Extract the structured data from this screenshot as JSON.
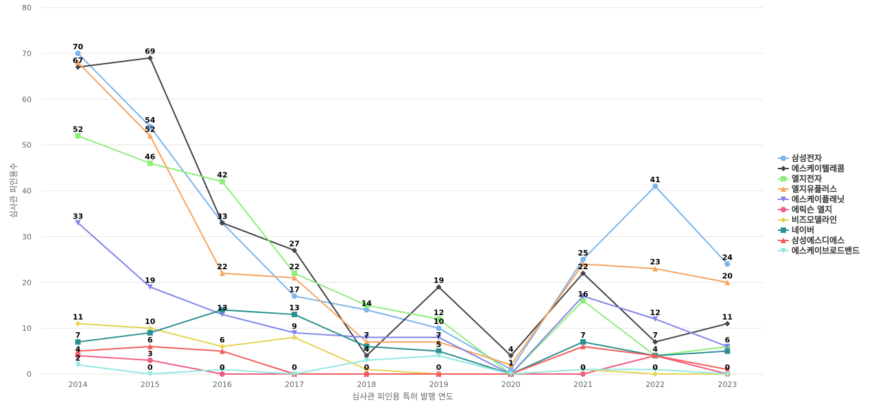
{
  "chart_data": {
    "type": "line",
    "title": "",
    "xlabel": "심사관 피인용 특허 발행 연도",
    "ylabel": "심사관 피인용수",
    "ylim": [
      0,
      80
    ],
    "yticks": [
      0,
      10,
      20,
      30,
      40,
      50,
      60,
      70,
      80
    ],
    "grid": true,
    "legend_position": "right",
    "x": [
      "2014",
      "2015",
      "2016",
      "2017",
      "2018",
      "2019",
      "2020",
      "2021",
      "2022",
      "2023"
    ],
    "series": [
      {
        "name": "삼성전자",
        "color": "#7cb5ec",
        "marker": "circle",
        "values": [
          70,
          54,
          33,
          17,
          14,
          10,
          1,
          25,
          41,
          24
        ],
        "labels": [
          true,
          true,
          false,
          true,
          true,
          true,
          false,
          true,
          true,
          true
        ]
      },
      {
        "name": "에스케이텔레콤",
        "color": "#434348",
        "marker": "diamond",
        "values": [
          67,
          69,
          33,
          27,
          4,
          19,
          4,
          22,
          7,
          11
        ],
        "labels": [
          true,
          true,
          true,
          true,
          true,
          true,
          true,
          true,
          true,
          true
        ]
      },
      {
        "name": "엘지전자",
        "color": "#90ed7d",
        "marker": "square",
        "values": [
          52,
          46,
          42,
          22,
          15,
          12,
          0,
          16,
          4,
          6
        ],
        "labels": [
          true,
          true,
          true,
          true,
          false,
          false,
          false,
          false,
          false,
          false
        ]
      },
      {
        "name": "엘지유플러스",
        "color": "#f7a35c",
        "marker": "triangle",
        "values": [
          68,
          52,
          22,
          21,
          7,
          7,
          2,
          24,
          23,
          20
        ],
        "labels": [
          false,
          true,
          true,
          false,
          false,
          false,
          false,
          false,
          true,
          true
        ]
      },
      {
        "name": "에스케이플래닛",
        "color": "#8085e9",
        "marker": "triangle-down",
        "values": [
          33,
          19,
          13,
          9,
          8,
          8,
          0,
          17,
          12,
          6
        ],
        "labels": [
          true,
          true,
          false,
          false,
          false,
          false,
          false,
          false,
          true,
          true
        ]
      },
      {
        "name": "에릭슨 엘지",
        "color": "#f15c80",
        "marker": "circle",
        "values": [
          4,
          3,
          0,
          0,
          0,
          0,
          0,
          0,
          4,
          0
        ],
        "labels": [
          true,
          true,
          true,
          true,
          true,
          true,
          false,
          true,
          true,
          true
        ]
      },
      {
        "name": "비즈모델라인",
        "color": "#e4d354",
        "marker": "diamond",
        "values": [
          11,
          10,
          6,
          8,
          1,
          0,
          0,
          1,
          0,
          0
        ],
        "labels": [
          true,
          true,
          true,
          true,
          false,
          false,
          false,
          false,
          false,
          false
        ]
      },
      {
        "name": "네이버",
        "color": "#2b908f",
        "marker": "square",
        "values": [
          7,
          9,
          14,
          13,
          6,
          5,
          0,
          7,
          4,
          5
        ],
        "labels": [
          true,
          false,
          false,
          false,
          false,
          false,
          false,
          true,
          false,
          false
        ]
      },
      {
        "name": "삼성에스디에스",
        "color": "#f45b5b",
        "marker": "triangle",
        "values": [
          5,
          6,
          5,
          0,
          0,
          0,
          0,
          6,
          4,
          1
        ],
        "labels": [
          false,
          true,
          false,
          false,
          false,
          false,
          false,
          false,
          false,
          false
        ]
      },
      {
        "name": "에스케이브로드밴드",
        "color": "#91e8e1",
        "marker": "triangle-down",
        "values": [
          2,
          0,
          1,
          0,
          3,
          4,
          0,
          1,
          1,
          0
        ],
        "labels": [
          true,
          true,
          false,
          false,
          false,
          false,
          false,
          false,
          false,
          false
        ]
      }
    ],
    "data_labels": [
      {
        "x": "2014",
        "text": "70",
        "value": 70
      },
      {
        "x": "2014",
        "text": "67",
        "value": 67
      },
      {
        "x": "2014",
        "text": "52",
        "value": 52
      },
      {
        "x": "2014",
        "text": "33",
        "value": 33
      },
      {
        "x": "2014",
        "text": "11",
        "value": 11
      },
      {
        "x": "2014",
        "text": "7",
        "value": 7
      },
      {
        "x": "2014",
        "text": "4",
        "value": 4
      },
      {
        "x": "2014",
        "text": "2",
        "value": 2
      },
      {
        "x": "2015",
        "text": "69",
        "value": 69
      },
      {
        "x": "2015",
        "text": "54",
        "value": 54
      },
      {
        "x": "2015",
        "text": "52",
        "value": 52
      },
      {
        "x": "2015",
        "text": "46",
        "value": 46
      },
      {
        "x": "2015",
        "text": "19",
        "value": 19
      },
      {
        "x": "2015",
        "text": "10",
        "value": 10
      },
      {
        "x": "2015",
        "text": "6",
        "value": 6
      },
      {
        "x": "2015",
        "text": "3",
        "value": 3
      },
      {
        "x": "2015",
        "text": "0",
        "value": 0
      },
      {
        "x": "2016",
        "text": "42",
        "value": 42
      },
      {
        "x": "2016",
        "text": "33",
        "value": 33
      },
      {
        "x": "2016",
        "text": "22",
        "value": 22
      },
      {
        "x": "2016",
        "text": "13",
        "value": 13
      },
      {
        "x": "2016",
        "text": "6",
        "value": 6
      },
      {
        "x": "2016",
        "text": "0",
        "value": 0
      },
      {
        "x": "2017",
        "text": "27",
        "value": 27
      },
      {
        "x": "2017",
        "text": "22",
        "value": 22
      },
      {
        "x": "2017",
        "text": "17",
        "value": 17
      },
      {
        "x": "2017",
        "text": "13",
        "value": 13
      },
      {
        "x": "2017",
        "text": "9",
        "value": 9
      },
      {
        "x": "2017",
        "text": "0",
        "value": 0
      },
      {
        "x": "2018",
        "text": "14",
        "value": 14
      },
      {
        "x": "2018",
        "text": "7",
        "value": 7
      },
      {
        "x": "2018",
        "text": "4",
        "value": 4
      },
      {
        "x": "2018",
        "text": "0",
        "value": 0
      },
      {
        "x": "2019",
        "text": "19",
        "value": 19
      },
      {
        "x": "2019",
        "text": "12",
        "value": 12
      },
      {
        "x": "2019",
        "text": "10",
        "value": 10
      },
      {
        "x": "2019",
        "text": "7",
        "value": 7
      },
      {
        "x": "2019",
        "text": "5",
        "value": 5
      },
      {
        "x": "2019",
        "text": "0",
        "value": 0
      },
      {
        "x": "2020",
        "text": "4",
        "value": 4
      },
      {
        "x": "2020",
        "text": "1",
        "value": 1
      },
      {
        "x": "2021",
        "text": "25",
        "value": 25
      },
      {
        "x": "2021",
        "text": "22",
        "value": 22
      },
      {
        "x": "2021",
        "text": "16",
        "value": 16
      },
      {
        "x": "2021",
        "text": "7",
        "value": 7
      },
      {
        "x": "2021",
        "text": "0",
        "value": 0
      },
      {
        "x": "2022",
        "text": "41",
        "value": 41
      },
      {
        "x": "2022",
        "text": "23",
        "value": 23
      },
      {
        "x": "2022",
        "text": "12",
        "value": 12
      },
      {
        "x": "2022",
        "text": "7",
        "value": 7
      },
      {
        "x": "2022",
        "text": "4",
        "value": 4
      },
      {
        "x": "2022",
        "text": "0",
        "value": 0
      },
      {
        "x": "2023",
        "text": "24",
        "value": 24
      },
      {
        "x": "2023",
        "text": "20",
        "value": 20
      },
      {
        "x": "2023",
        "text": "11",
        "value": 11
      },
      {
        "x": "2023",
        "text": "6",
        "value": 6
      },
      {
        "x": "2023",
        "text": "0",
        "value": 0
      }
    ]
  }
}
